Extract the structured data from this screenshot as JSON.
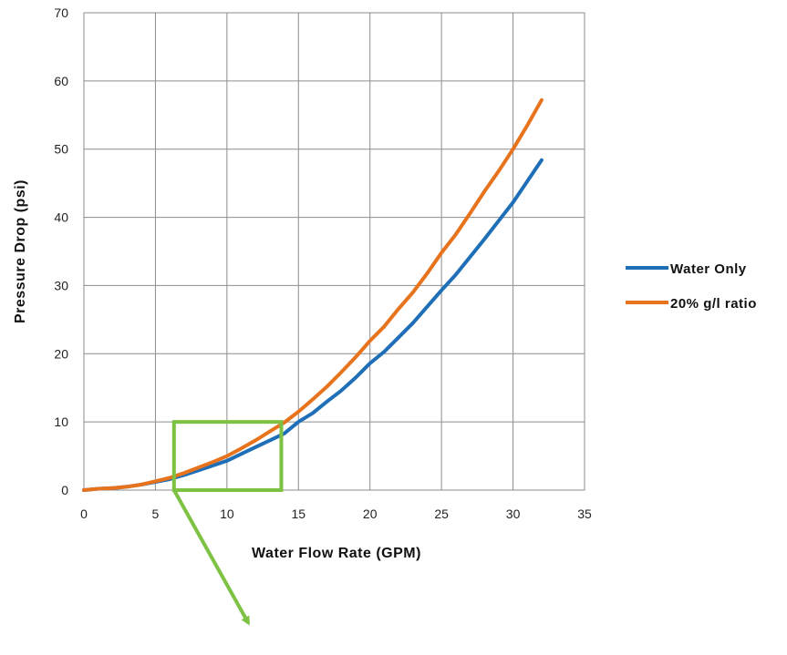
{
  "chart_data": {
    "type": "line",
    "title": "",
    "xlabel": "Water Flow Rate (GPM)",
    "ylabel": "Pressure Drop (psi)",
    "xlim": [
      0,
      35
    ],
    "ylim": [
      0,
      70
    ],
    "xticks": [
      0,
      5,
      10,
      15,
      20,
      25,
      30,
      35
    ],
    "yticks": [
      0,
      10,
      20,
      30,
      40,
      50,
      60,
      70
    ],
    "xtick_labels": [
      "0",
      "5",
      "10",
      "15",
      "20",
      "25",
      "30",
      "35"
    ],
    "ytick_labels": [
      "0",
      "10",
      "20",
      "30",
      "40",
      "50",
      "60",
      "70"
    ],
    "grid": true,
    "legend_position": "right",
    "series": [
      {
        "name": "Water Only",
        "color": "#1f6fb8",
        "x": [
          0,
          1,
          2,
          3,
          4,
          5,
          6,
          7,
          8,
          9,
          10,
          11,
          12,
          13,
          14,
          15,
          16,
          17,
          18,
          19,
          20,
          21,
          22,
          23,
          24,
          25,
          26,
          27,
          28,
          29,
          30,
          31,
          32
        ],
        "y": [
          0,
          0.2,
          0.3,
          0.5,
          0.8,
          1.2,
          1.6,
          2.2,
          2.9,
          3.6,
          4.3,
          5.3,
          6.3,
          7.3,
          8.3,
          10.0,
          11.3,
          13.0,
          14.6,
          16.5,
          18.6,
          20.3,
          22.4,
          24.5,
          26.9,
          29.3,
          31.6,
          34.2,
          36.8,
          39.5,
          42.2,
          45.3,
          48.4
        ]
      },
      {
        "name": "20% g/l ratio",
        "color": "#e8731d",
        "x": [
          0,
          1,
          2,
          3,
          4,
          5,
          6,
          7,
          8,
          9,
          10,
          11,
          12,
          13,
          14,
          15,
          16,
          17,
          18,
          19,
          20,
          21,
          22,
          23,
          24,
          25,
          26,
          27,
          28,
          29,
          30,
          31,
          32
        ],
        "y": [
          0,
          0.2,
          0.3,
          0.5,
          0.8,
          1.3,
          1.8,
          2.5,
          3.3,
          4.1,
          5.0,
          6.1,
          7.3,
          8.6,
          9.9,
          11.5,
          13.3,
          15.2,
          17.3,
          19.5,
          21.9,
          24.0,
          26.6,
          29.0,
          31.8,
          34.8,
          37.5,
          40.6,
          43.8,
          46.8,
          50.0,
          53.5,
          57.2
        ]
      }
    ],
    "annotations": [
      {
        "type": "highlight-box",
        "color": "#7dc242",
        "x": [
          6.3,
          13.8
        ],
        "y": [
          0,
          10
        ]
      },
      {
        "type": "arrow",
        "color": "#7dc242",
        "from": [
          6.3,
          0
        ],
        "to": [
          11.5,
          -19.5
        ]
      }
    ]
  }
}
